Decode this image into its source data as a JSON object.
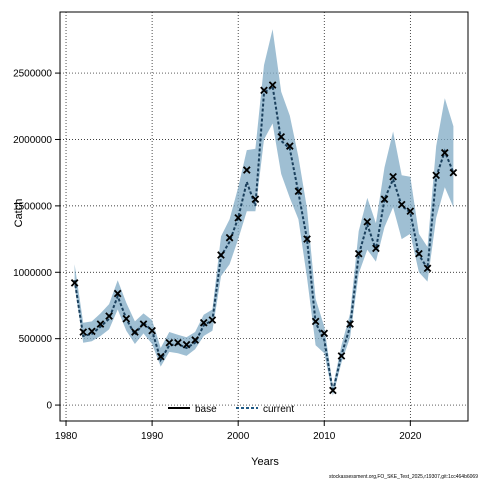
{
  "chart_data": {
    "type": "line",
    "title": "",
    "xlabel": "Years",
    "ylabel": "Catch",
    "xlim": [
      1979.3,
      2026.7
    ],
    "ylim": [
      -120000,
      2960000
    ],
    "xticks": [
      1980,
      1990,
      2000,
      2010,
      2020
    ],
    "xtick_labels": [
      "1980",
      "1990",
      "2000",
      "2010",
      "2020"
    ],
    "yticks": [
      0,
      500000,
      1000000,
      1500000,
      2000000,
      2500000
    ],
    "ytick_labels": [
      "0",
      "500000",
      "1000000",
      "1500000",
      "2000000",
      "2500000"
    ],
    "grid": true,
    "legend_position": "bottom",
    "legend": [
      {
        "label": "base",
        "style": "solid",
        "color": "#000000"
      },
      {
        "label": "current",
        "style": "dashed",
        "color": "#1f5a86"
      }
    ],
    "band_color": "#7faac4",
    "x": [
      1981,
      1982,
      1983,
      1984,
      1985,
      1986,
      1987,
      1988,
      1989,
      1990,
      1991,
      1992,
      1993,
      1994,
      1995,
      1996,
      1997,
      1998,
      1999,
      2000,
      2001,
      2002,
      2003,
      2004,
      2005,
      2006,
      2007,
      2008,
      2009,
      2010,
      2011,
      2012,
      2013,
      2014,
      2015,
      2016,
      2017,
      2018,
      2019,
      2020,
      2021,
      2022,
      2023,
      2024,
      2025
    ],
    "series": [
      {
        "name": "current",
        "values": [
          940000,
          520000,
          535000,
          590000,
          650000,
          820000,
          650000,
          530000,
          620000,
          560000,
          340000,
          450000,
          460000,
          430000,
          470000,
          600000,
          640000,
          1120000,
          1230000,
          1410000,
          1680000,
          1500000,
          2350000,
          2400000,
          1990000,
          1930000,
          1600000,
          1250000,
          620000,
          490000,
          100000,
          380000,
          590000,
          1130000,
          1360000,
          1170000,
          1550000,
          1700000,
          1500000,
          1450000,
          1130000,
          1030000,
          1720000,
          1910000,
          1750000
        ],
        "lower": [
          900000,
          470000,
          480000,
          520000,
          570000,
          720000,
          560000,
          460000,
          540000,
          460000,
          290000,
          400000,
          390000,
          370000,
          420000,
          520000,
          560000,
          970000,
          1060000,
          1250000,
          1460000,
          1460000,
          2000000,
          2120000,
          1740000,
          1560000,
          1400000,
          960000,
          450000,
          390000,
          70000,
          320000,
          510000,
          990000,
          1170000,
          1080000,
          1340000,
          1490000,
          1250000,
          1290000,
          1000000,
          930000,
          1410000,
          1640000,
          1490000
        ],
        "upper": [
          1060000,
          620000,
          630000,
          690000,
          760000,
          940000,
          770000,
          630000,
          690000,
          640000,
          430000,
          550000,
          530000,
          510000,
          550000,
          680000,
          720000,
          1270000,
          1400000,
          1640000,
          1920000,
          1930000,
          2560000,
          2830000,
          2360000,
          2180000,
          1870000,
          1480000,
          800000,
          590000,
          140000,
          450000,
          690000,
          1310000,
          1560000,
          1370000,
          1790000,
          2060000,
          1730000,
          1720000,
          1290000,
          1190000,
          1950000,
          2310000,
          2100000
        ]
      },
      {
        "name": "base",
        "marker": "x",
        "values": [
          920000,
          550000,
          555000,
          610000,
          670000,
          840000,
          650000,
          550000,
          610000,
          560000,
          365000,
          470000,
          470000,
          455000,
          490000,
          620000,
          640000,
          1130000,
          1260000,
          1410000,
          1770000,
          1550000,
          2370000,
          2410000,
          2020000,
          1950000,
          1610000,
          1250000,
          630000,
          540000,
          110000,
          370000,
          610000,
          1140000,
          1380000,
          1180000,
          1550000,
          1720000,
          1510000,
          1460000,
          1140000,
          1030000,
          1730000,
          1900000,
          1750000
        ]
      }
    ]
  },
  "footer_text": "stockassessment.org,FO_SKE_Test_2025,r19307,git:1cc464b6069"
}
